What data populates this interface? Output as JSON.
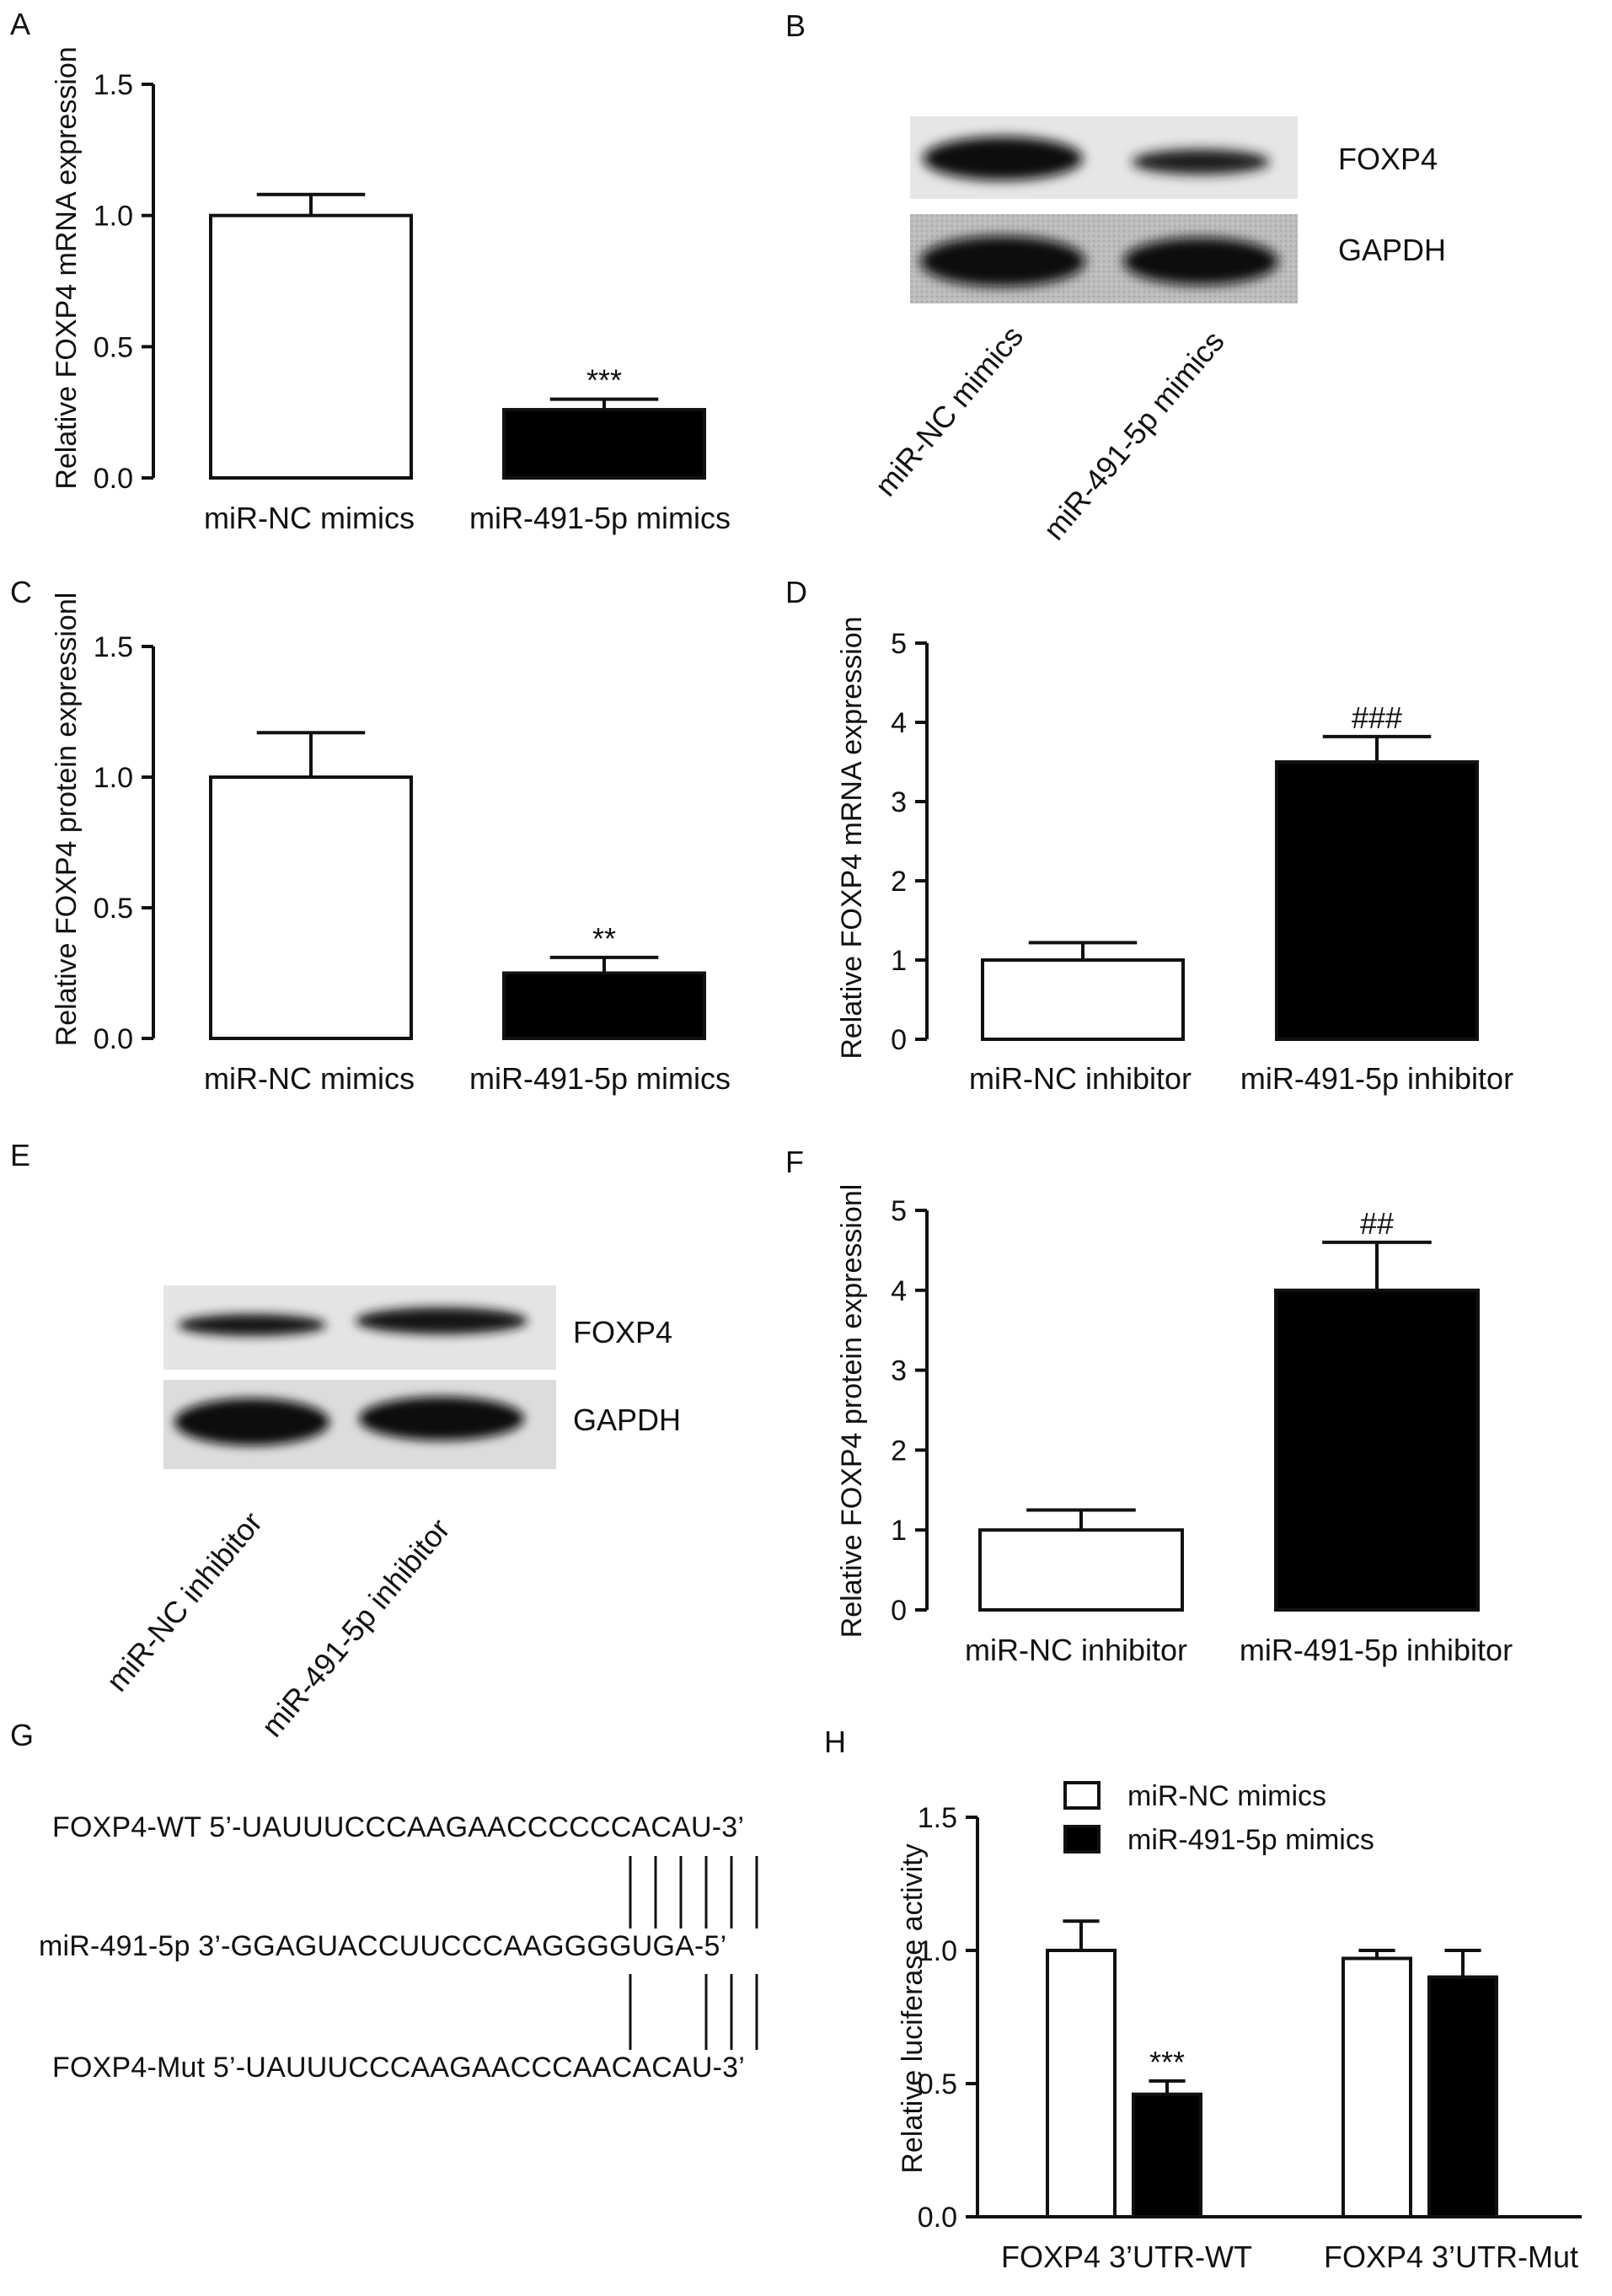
{
  "panels": {
    "A": {
      "letter": "A"
    },
    "B": {
      "letter": "B"
    },
    "C": {
      "letter": "C"
    },
    "D": {
      "letter": "D"
    },
    "E": {
      "letter": "E"
    },
    "F": {
      "letter": "F"
    },
    "G": {
      "letter": "G"
    },
    "H": {
      "letter": "H"
    }
  },
  "chart_data": [
    {
      "id": "A",
      "type": "bar",
      "categories": [
        "miR-NC mimics",
        "miR-491-5p mimics"
      ],
      "values": [
        1.0,
        0.26
      ],
      "errors": [
        0.08,
        0.04
      ],
      "fills": [
        "white",
        "black"
      ],
      "significance": [
        "",
        "***"
      ],
      "ylabel": "Relative FOXP4 mRNA expression",
      "ylim": [
        0,
        1.5
      ],
      "yticks": [
        0.0,
        0.5,
        1.0,
        1.5
      ],
      "ytick_labels": [
        "0.0",
        "0.5",
        "1.0",
        "1.5"
      ]
    },
    {
      "id": "C",
      "type": "bar",
      "categories": [
        "miR-NC mimics",
        "miR-491-5p mimics"
      ],
      "values": [
        1.0,
        0.25
      ],
      "errors": [
        0.17,
        0.06
      ],
      "fills": [
        "white",
        "black"
      ],
      "significance": [
        "",
        "**"
      ],
      "ylabel": "Relative FOXP4 protein expressionl",
      "ylim": [
        0,
        1.5
      ],
      "yticks": [
        0.0,
        0.5,
        1.0,
        1.5
      ],
      "ytick_labels": [
        "0.0",
        "0.5",
        "1.0",
        "1.5"
      ]
    },
    {
      "id": "D",
      "type": "bar",
      "categories": [
        "miR-NC inhibitor",
        "miR-491-5p inhibitor"
      ],
      "values": [
        1.0,
        3.5
      ],
      "errors": [
        0.22,
        0.32
      ],
      "fills": [
        "white",
        "black"
      ],
      "significance": [
        "",
        "###"
      ],
      "ylabel": "Relative FOXP4 mRNA expression",
      "ylim": [
        0,
        5
      ],
      "yticks": [
        0,
        1,
        2,
        3,
        4,
        5
      ],
      "ytick_labels": [
        "0",
        "1",
        "2",
        "3",
        "4",
        "5"
      ]
    },
    {
      "id": "F",
      "type": "bar",
      "categories": [
        "miR-NC inhibitor",
        "miR-491-5p inhibitor"
      ],
      "values": [
        1.0,
        4.0
      ],
      "errors": [
        0.25,
        0.6
      ],
      "fills": [
        "white",
        "black"
      ],
      "significance": [
        "",
        "##"
      ],
      "ylabel": "Relative FOXP4 protein expressionl",
      "ylim": [
        0,
        5
      ],
      "yticks": [
        0,
        1,
        2,
        3,
        4,
        5
      ],
      "ytick_labels": [
        "0",
        "1",
        "2",
        "3",
        "4",
        "5"
      ]
    },
    {
      "id": "H",
      "type": "bar",
      "categories": [
        "FOXP4 3’UTR-WT",
        "FOXP4 3’UTR-Mut"
      ],
      "series": [
        {
          "name": "miR-NC mimics",
          "fill": "white",
          "values": [
            1.0,
            0.97
          ],
          "errors": [
            0.11,
            0.03
          ],
          "significance": [
            "",
            ""
          ]
        },
        {
          "name": "miR-491-5p mimics",
          "fill": "black",
          "values": [
            0.46,
            0.9
          ],
          "errors": [
            0.05,
            0.1
          ],
          "significance": [
            "***",
            ""
          ]
        }
      ],
      "ylabel": "Relative luciferase activity",
      "ylim": [
        0,
        1.5
      ],
      "yticks": [
        0.0,
        0.5,
        1.0,
        1.5
      ],
      "ytick_labels": [
        "0.0",
        "0.5",
        "1.0",
        "1.5"
      ],
      "legend": "top"
    }
  ],
  "blots": {
    "B": {
      "bands": [
        "FOXP4",
        "GAPDH"
      ],
      "lanes": [
        "miR-NC mimics",
        "miR-491-5p mimics"
      ]
    },
    "E": {
      "bands": [
        "FOXP4",
        "GAPDH"
      ],
      "lanes": [
        "miR-NC inhibitor",
        "miR-491-5p inhibitor"
      ]
    }
  },
  "sequences": {
    "wt": "FOXP4-WT 5’-UAUUUCCCAAGAACCCCCCACAU-3’",
    "mir": "miR-491-5p 3’-GGAGUACCUUCCCAAGGGGUGA-5’",
    "mut": "FOXP4-Mut 5’-UAUUUCCCAAGAACCCAACACAU-3’"
  }
}
